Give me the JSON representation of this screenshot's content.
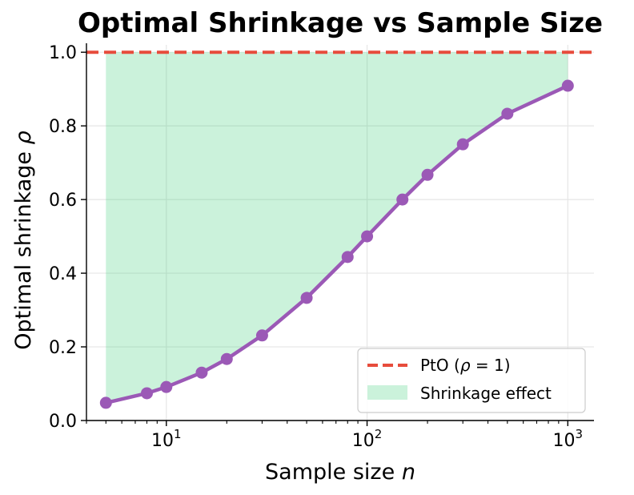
{
  "chart_data": {
    "type": "line",
    "title": "Optimal Shrinkage vs Sample Size",
    "xlabel_main": "Sample size ",
    "xlabel_var": "n",
    "ylabel_main": "Optimal shrinkage ",
    "ylabel_var": "ρ",
    "xscale": "log",
    "xlim": [
      4,
      1350
    ],
    "ylim": [
      0.0,
      1.02
    ],
    "yticks": [
      {
        "value": 0.0,
        "label": "0.0"
      },
      {
        "value": 0.2,
        "label": "0.2"
      },
      {
        "value": 0.4,
        "label": "0.4"
      },
      {
        "value": 0.6,
        "label": "0.6"
      },
      {
        "value": 0.8,
        "label": "0.8"
      },
      {
        "value": 1.0,
        "label": "1.0"
      }
    ],
    "xticks": [
      {
        "value": 10,
        "base": "10",
        "exp": "1"
      },
      {
        "value": 100,
        "base": "10",
        "exp": "2"
      },
      {
        "value": 1000,
        "base": "10",
        "exp": "3"
      }
    ],
    "series": [
      {
        "name": "Optimal shrinkage",
        "color": "#9b59b6",
        "x": [
          5,
          8,
          10,
          15,
          20,
          30,
          50,
          80,
          100,
          150,
          200,
          300,
          500,
          1000
        ],
        "y": [
          0.048,
          0.074,
          0.091,
          0.13,
          0.167,
          0.231,
          0.333,
          0.444,
          0.5,
          0.6,
          0.667,
          0.75,
          0.833,
          0.909
        ]
      }
    ],
    "reference_line": {
      "y": 1.0,
      "color": "#e74c3c",
      "style": "dashed"
    },
    "shaded_region": {
      "color": "#2ecc71",
      "opacity": 0.25,
      "between": "series and reference line"
    },
    "legend": {
      "position": "lower-right",
      "entries": [
        {
          "label_prefix": "PtO (",
          "label_var": "ρ",
          "label_suffix": " = 1)",
          "kind": "dashed-line",
          "color": "#e74c3c"
        },
        {
          "label": "Shrinkage effect",
          "kind": "patch",
          "color": "#2ecc71"
        }
      ]
    },
    "grid": true
  }
}
